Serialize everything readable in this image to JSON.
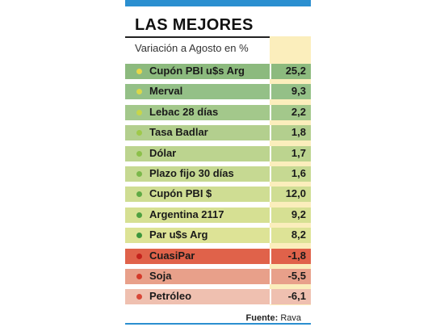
{
  "chart_data": {
    "type": "table",
    "title": "LAS MEJORES",
    "subtitle": "Variación a Agosto en %",
    "source_label": "Fuente:",
    "source_value": "Rava",
    "rows": [
      {
        "name": "Cupón PBI u$s Arg",
        "value": "25,2",
        "color": "#8cba7e",
        "dot": "#e8d84a"
      },
      {
        "name": "Merval",
        "value": "9,3",
        "color": "#94c087",
        "dot": "#d9d84a"
      },
      {
        "name": "Lebac 28 días",
        "value": "2,2",
        "color": "#a3c88b",
        "dot": "#c7d64a"
      },
      {
        "name": "Tasa Badlar",
        "value": "1,8",
        "color": "#b3cf8e",
        "dot": "#9fc94a"
      },
      {
        "name": "Dólar",
        "value": "1,7",
        "color": "#bcd48f",
        "dot": "#8cc04a"
      },
      {
        "name": "Plazo fijo 30 días",
        "value": "1,6",
        "color": "#c6d992",
        "dot": "#7bb84a"
      },
      {
        "name": "Cupón PBI $",
        "value": "12,0",
        "color": "#cfdd93",
        "dot": "#5faa44"
      },
      {
        "name": "Argentina 2117",
        "value": "9,2",
        "color": "#d6e093",
        "dot": "#4fa040"
      },
      {
        "name": "Par u$s Arg",
        "value": "8,2",
        "color": "#dde396",
        "dot": "#3d963c"
      },
      {
        "name": "CuasiPar",
        "value": "-1,8",
        "color": "#e0624a",
        "dot": "#c4221c"
      },
      {
        "name": "Soja",
        "value": "-5,5",
        "color": "#e8a08a",
        "dot": "#d43a2a"
      },
      {
        "name": "Petróleo",
        "value": "-6,1",
        "color": "#efc0b0",
        "dot": "#d84838"
      }
    ]
  }
}
